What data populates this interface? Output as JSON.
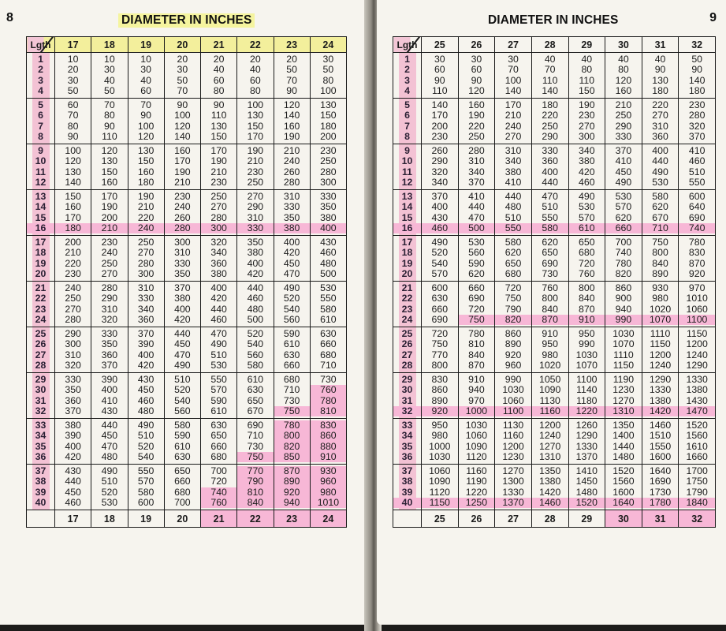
{
  "left_page": {
    "page_number": "8",
    "title": "DIAMETER IN INCHES",
    "corner_label": "Lgth",
    "diameters": [
      "17",
      "18",
      "19",
      "20",
      "21",
      "22",
      "23",
      "24"
    ],
    "lengths": [
      [
        "1",
        "2",
        "3",
        "4"
      ],
      [
        "5",
        "6",
        "7",
        "8"
      ],
      [
        "9",
        "10",
        "11",
        "12"
      ],
      [
        "13",
        "14",
        "15",
        "16"
      ],
      [
        "17",
        "18",
        "19",
        "20"
      ],
      [
        "21",
        "22",
        "23",
        "24"
      ],
      [
        "25",
        "26",
        "27",
        "28"
      ],
      [
        "29",
        "30",
        "31",
        "32"
      ],
      [
        "33",
        "34",
        "35",
        "36"
      ],
      [
        "37",
        "38",
        "39",
        "40"
      ]
    ],
    "groups": [
      [
        [
          "10",
          "20",
          "30",
          "50"
        ],
        [
          "10",
          "30",
          "40",
          "50"
        ],
        [
          "10",
          "30",
          "40",
          "60"
        ],
        [
          "20",
          "30",
          "50",
          "70"
        ],
        [
          "20",
          "40",
          "60",
          "80"
        ],
        [
          "20",
          "40",
          "60",
          "80"
        ],
        [
          "20",
          "50",
          "70",
          "90"
        ],
        [
          "30",
          "50",
          "80",
          "100"
        ]
      ],
      [
        [
          "60",
          "70",
          "80",
          "90"
        ],
        [
          "70",
          "80",
          "90",
          "110"
        ],
        [
          "70",
          "90",
          "100",
          "120"
        ],
        [
          "90",
          "100",
          "120",
          "140"
        ],
        [
          "90",
          "110",
          "130",
          "150"
        ],
        [
          "100",
          "130",
          "150",
          "170"
        ],
        [
          "120",
          "140",
          "160",
          "190"
        ],
        [
          "130",
          "150",
          "180",
          "200"
        ]
      ],
      [
        [
          "100",
          "120",
          "130",
          "140"
        ],
        [
          "120",
          "130",
          "150",
          "160"
        ],
        [
          "130",
          "150",
          "160",
          "180"
        ],
        [
          "160",
          "170",
          "190",
          "210"
        ],
        [
          "170",
          "190",
          "210",
          "230"
        ],
        [
          "190",
          "210",
          "230",
          "250"
        ],
        [
          "210",
          "240",
          "260",
          "280"
        ],
        [
          "230",
          "250",
          "280",
          "300"
        ]
      ],
      [
        [
          "150",
          "160",
          "170",
          "180"
        ],
        [
          "170",
          "190",
          "200",
          "210"
        ],
        [
          "190",
          "210",
          "220",
          "240"
        ],
        [
          "230",
          "240",
          "260",
          "280"
        ],
        [
          "250",
          "270",
          "280",
          "300"
        ],
        [
          "270",
          "290",
          "310",
          "330"
        ],
        [
          "310",
          "330",
          "350",
          "380"
        ],
        [
          "330",
          "350",
          "380",
          "400"
        ]
      ],
      [
        [
          "200",
          "210",
          "220",
          "230"
        ],
        [
          "230",
          "240",
          "250",
          "270"
        ],
        [
          "250",
          "270",
          "280",
          "300"
        ],
        [
          "300",
          "310",
          "330",
          "350"
        ],
        [
          "320",
          "340",
          "360",
          "380"
        ],
        [
          "350",
          "380",
          "400",
          "420"
        ],
        [
          "400",
          "420",
          "450",
          "470"
        ],
        [
          "430",
          "460",
          "480",
          "500"
        ]
      ],
      [
        [
          "240",
          "250",
          "270",
          "280"
        ],
        [
          "280",
          "290",
          "310",
          "320"
        ],
        [
          "310",
          "330",
          "340",
          "360"
        ],
        [
          "370",
          "380",
          "400",
          "420"
        ],
        [
          "400",
          "420",
          "440",
          "460"
        ],
        [
          "440",
          "460",
          "480",
          "500"
        ],
        [
          "490",
          "520",
          "540",
          "560"
        ],
        [
          "530",
          "550",
          "580",
          "610"
        ]
      ],
      [
        [
          "290",
          "300",
          "310",
          "320"
        ],
        [
          "330",
          "350",
          "360",
          "370"
        ],
        [
          "370",
          "390",
          "400",
          "420"
        ],
        [
          "440",
          "450",
          "470",
          "490"
        ],
        [
          "470",
          "490",
          "510",
          "530"
        ],
        [
          "520",
          "540",
          "560",
          "580"
        ],
        [
          "590",
          "610",
          "630",
          "660"
        ],
        [
          "630",
          "660",
          "680",
          "710"
        ]
      ],
      [
        [
          "330",
          "350",
          "360",
          "370"
        ],
        [
          "390",
          "400",
          "410",
          "430"
        ],
        [
          "430",
          "450",
          "460",
          "480"
        ],
        [
          "510",
          "520",
          "540",
          "560"
        ],
        [
          "550",
          "570",
          "590",
          "610"
        ],
        [
          "610",
          "630",
          "650",
          "670"
        ],
        [
          "680",
          "710",
          "730",
          "750"
        ],
        [
          "730",
          "760",
          "780",
          "810"
        ]
      ],
      [
        [
          "380",
          "390",
          "400",
          "420"
        ],
        [
          "440",
          "450",
          "470",
          "480"
        ],
        [
          "490",
          "510",
          "520",
          "540"
        ],
        [
          "580",
          "590",
          "610",
          "630"
        ],
        [
          "630",
          "650",
          "660",
          "680"
        ],
        [
          "690",
          "710",
          "730",
          "750"
        ],
        [
          "780",
          "800",
          "820",
          "850"
        ],
        [
          "830",
          "860",
          "880",
          "910"
        ]
      ],
      [
        [
          "430",
          "440",
          "450",
          "460"
        ],
        [
          "490",
          "510",
          "520",
          "530"
        ],
        [
          "550",
          "570",
          "580",
          "600"
        ],
        [
          "650",
          "660",
          "680",
          "700"
        ],
        [
          "700",
          "720",
          "740",
          "760"
        ],
        [
          "770",
          "790",
          "810",
          "840"
        ],
        [
          "870",
          "890",
          "920",
          "940"
        ],
        [
          "930",
          "960",
          "980",
          "1010"
        ]
      ]
    ]
  },
  "right_page": {
    "page_number": "9",
    "title": "DIAMETER IN INCHES",
    "corner_label": "Lgth",
    "diameters": [
      "25",
      "26",
      "27",
      "28",
      "29",
      "30",
      "31",
      "32"
    ],
    "lengths": [
      [
        "1",
        "2",
        "3",
        "4"
      ],
      [
        "5",
        "6",
        "7",
        "8"
      ],
      [
        "9",
        "10",
        "11",
        "12"
      ],
      [
        "13",
        "14",
        "15",
        "16"
      ],
      [
        "17",
        "18",
        "19",
        "20"
      ],
      [
        "21",
        "22",
        "23",
        "24"
      ],
      [
        "25",
        "26",
        "27",
        "28"
      ],
      [
        "29",
        "30",
        "31",
        "32"
      ],
      [
        "33",
        "34",
        "35",
        "36"
      ],
      [
        "37",
        "38",
        "39",
        "40"
      ]
    ],
    "groups": [
      [
        [
          "30",
          "60",
          "90",
          "110"
        ],
        [
          "30",
          "60",
          "90",
          "120"
        ],
        [
          "30",
          "70",
          "100",
          "140"
        ],
        [
          "40",
          "70",
          "110",
          "140"
        ],
        [
          "40",
          "80",
          "110",
          "150"
        ],
        [
          "40",
          "80",
          "120",
          "160"
        ],
        [
          "40",
          "90",
          "130",
          "180"
        ],
        [
          "50",
          "90",
          "140",
          "180"
        ]
      ],
      [
        [
          "140",
          "170",
          "200",
          "230"
        ],
        [
          "160",
          "190",
          "220",
          "250"
        ],
        [
          "170",
          "210",
          "240",
          "270"
        ],
        [
          "180",
          "220",
          "250",
          "290"
        ],
        [
          "190",
          "230",
          "270",
          "300"
        ],
        [
          "210",
          "250",
          "290",
          "330"
        ],
        [
          "220",
          "270",
          "310",
          "360"
        ],
        [
          "230",
          "280",
          "320",
          "370"
        ]
      ],
      [
        [
          "260",
          "290",
          "320",
          "340"
        ],
        [
          "280",
          "310",
          "340",
          "370"
        ],
        [
          "310",
          "340",
          "380",
          "410"
        ],
        [
          "330",
          "360",
          "400",
          "440"
        ],
        [
          "340",
          "380",
          "420",
          "460"
        ],
        [
          "370",
          "410",
          "450",
          "490"
        ],
        [
          "400",
          "440",
          "490",
          "530"
        ],
        [
          "410",
          "460",
          "510",
          "550"
        ]
      ],
      [
        [
          "370",
          "400",
          "430",
          "460"
        ],
        [
          "410",
          "440",
          "470",
          "500"
        ],
        [
          "440",
          "480",
          "510",
          "550"
        ],
        [
          "470",
          "510",
          "550",
          "580"
        ],
        [
          "490",
          "530",
          "570",
          "610"
        ],
        [
          "530",
          "570",
          "620",
          "660"
        ],
        [
          "580",
          "620",
          "670",
          "710"
        ],
        [
          "600",
          "640",
          "690",
          "740"
        ]
      ],
      [
        [
          "490",
          "520",
          "540",
          "570"
        ],
        [
          "530",
          "560",
          "590",
          "620"
        ],
        [
          "580",
          "620",
          "650",
          "680"
        ],
        [
          "620",
          "650",
          "690",
          "730"
        ],
        [
          "650",
          "680",
          "720",
          "760"
        ],
        [
          "700",
          "740",
          "780",
          "820"
        ],
        [
          "750",
          "800",
          "840",
          "890"
        ],
        [
          "780",
          "830",
          "870",
          "920"
        ]
      ],
      [
        [
          "600",
          "630",
          "660",
          "690"
        ],
        [
          "660",
          "690",
          "720",
          "750"
        ],
        [
          "720",
          "750",
          "790",
          "820"
        ],
        [
          "760",
          "800",
          "840",
          "870"
        ],
        [
          "800",
          "840",
          "870",
          "910"
        ],
        [
          "860",
          "900",
          "940",
          "990"
        ],
        [
          "930",
          "980",
          "1020",
          "1070"
        ],
        [
          "970",
          "1010",
          "1060",
          "1100"
        ]
      ],
      [
        [
          "720",
          "750",
          "770",
          "800"
        ],
        [
          "780",
          "810",
          "840",
          "870"
        ],
        [
          "860",
          "890",
          "920",
          "960"
        ],
        [
          "910",
          "950",
          "980",
          "1020"
        ],
        [
          "950",
          "990",
          "1030",
          "1070"
        ],
        [
          "1030",
          "1070",
          "1110",
          "1150"
        ],
        [
          "1110",
          "1150",
          "1200",
          "1240"
        ],
        [
          "1150",
          "1200",
          "1240",
          "1290"
        ]
      ],
      [
        [
          "830",
          "860",
          "890",
          "920"
        ],
        [
          "910",
          "940",
          "970",
          "1000"
        ],
        [
          "990",
          "1030",
          "1060",
          "1100"
        ],
        [
          "1050",
          "1090",
          "1130",
          "1160"
        ],
        [
          "1100",
          "1140",
          "1180",
          "1220"
        ],
        [
          "1190",
          "1230",
          "1270",
          "1310"
        ],
        [
          "1290",
          "1330",
          "1380",
          "1420"
        ],
        [
          "1330",
          "1380",
          "1430",
          "1470"
        ]
      ],
      [
        [
          "950",
          "980",
          "1000",
          "1030"
        ],
        [
          "1030",
          "1060",
          "1090",
          "1120"
        ],
        [
          "1130",
          "1160",
          "1200",
          "1230"
        ],
        [
          "1200",
          "1240",
          "1270",
          "1310"
        ],
        [
          "1260",
          "1290",
          "1330",
          "1370"
        ],
        [
          "1350",
          "1400",
          "1440",
          "1480"
        ],
        [
          "1460",
          "1510",
          "1550",
          "1600"
        ],
        [
          "1520",
          "1560",
          "1610",
          "1660"
        ]
      ],
      [
        [
          "1060",
          "1090",
          "1120",
          "1150"
        ],
        [
          "1160",
          "1190",
          "1220",
          "1250"
        ],
        [
          "1270",
          "1300",
          "1330",
          "1370"
        ],
        [
          "1350",
          "1380",
          "1420",
          "1460"
        ],
        [
          "1410",
          "1450",
          "1480",
          "1520"
        ],
        [
          "1520",
          "1560",
          "1600",
          "1640"
        ],
        [
          "1640",
          "1690",
          "1730",
          "1780"
        ],
        [
          "1700",
          "1750",
          "1790",
          "1840"
        ]
      ]
    ]
  },
  "highlight_color": "#f7b7d6",
  "header_highlight_color": "#f3ef9c"
}
